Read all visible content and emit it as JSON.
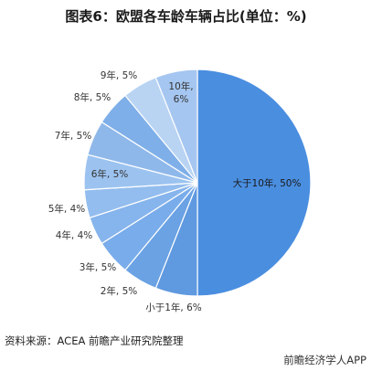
{
  "title": "图表6：欧盟各车龄车辆占比(单位：%)",
  "source": "资料来源：ACEA 前瞻产业研究院整理",
  "watermark": "前瞻经济学人APP",
  "colors": {
    "main_slice": "#4a8ee0",
    "slice_palette": [
      "#5f99df",
      "#6aa2e4",
      "#79acea",
      "#86b4ec",
      "#93bdee",
      "#9cc3f0",
      "#8fb8ea",
      "#7fafe8",
      "#b9d4f3",
      "#a5c6f0"
    ],
    "slice_border": "#ffffff",
    "label_text": "#333333"
  },
  "chart_data": {
    "type": "pie",
    "title": "欧盟各车龄车辆占比(单位：%)",
    "unit": "%",
    "start": "12 o'clock, clockwise",
    "slices": [
      {
        "label": "大于10年",
        "value": 50,
        "display": "大于10年, 50%"
      },
      {
        "label": "小于1年",
        "value": 6,
        "display": "小于1年, 6%"
      },
      {
        "label": "2年",
        "value": 5,
        "display": "2年, 5%"
      },
      {
        "label": "3年",
        "value": 5,
        "display": "3年, 5%"
      },
      {
        "label": "4年",
        "value": 4,
        "display": "4年, 4%"
      },
      {
        "label": "5年",
        "value": 4,
        "display": "5年, 4%"
      },
      {
        "label": "6年",
        "value": 5,
        "display": "6年, 5%"
      },
      {
        "label": "7年",
        "value": 5,
        "display": "7年, 5%"
      },
      {
        "label": "8年",
        "value": 5,
        "display": "8年, 5%"
      },
      {
        "label": "9年",
        "value": 5,
        "display": "9年, 5%"
      },
      {
        "label": "10年",
        "value": 6,
        "display": "10年, 6%"
      }
    ]
  }
}
